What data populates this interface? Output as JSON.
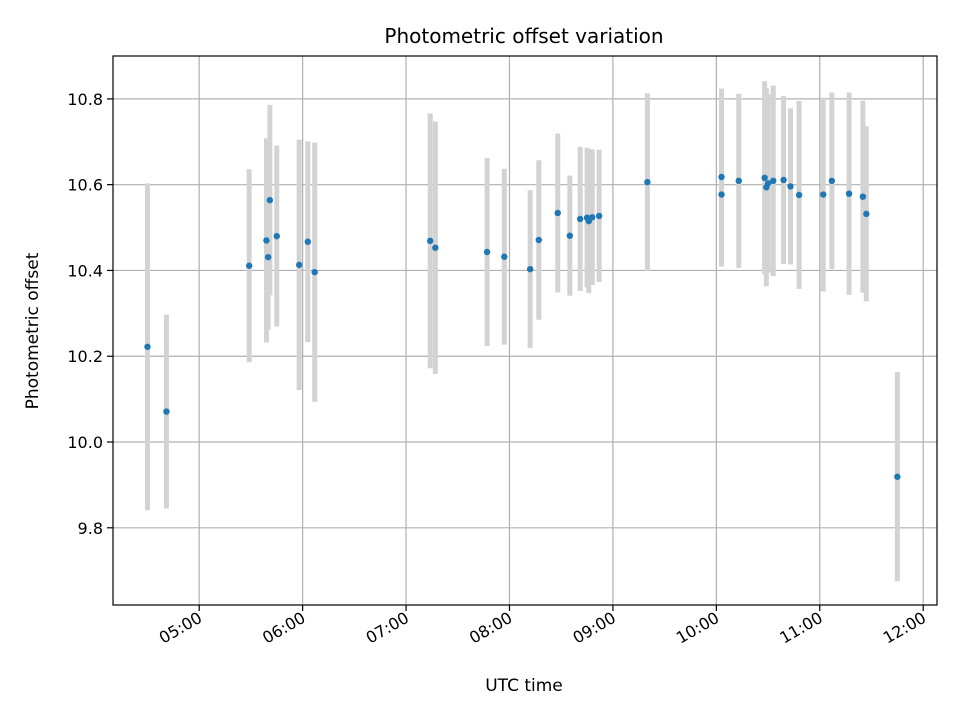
{
  "chart_data": {
    "type": "scatter",
    "title": "Photometric offset variation",
    "xlabel": "UTC time",
    "ylabel": "Photometric offset",
    "x_unit": "UTC time (HH:MM)",
    "xlim": [
      "04:10",
      "12:08"
    ],
    "ylim": [
      9.62,
      10.9
    ],
    "x_ticks": [
      "05:00",
      "06:00",
      "07:00",
      "08:00",
      "09:00",
      "10:00",
      "11:00",
      "12:00"
    ],
    "y_ticks": [
      "9.8",
      "10.0",
      "10.2",
      "10.4",
      "10.6",
      "10.8"
    ],
    "grid": true,
    "legend": "none",
    "colors": {
      "point": "#1f77b4",
      "errorbar": "#d3d3d3",
      "grid": "#b0b0b0"
    },
    "points": [
      {
        "x": "04:30",
        "y": 10.222,
        "err": 0.381
      },
      {
        "x": "04:41",
        "y": 10.071,
        "err": 0.226
      },
      {
        "x": "05:29",
        "y": 10.411,
        "err": 0.225
      },
      {
        "x": "05:39",
        "y": 10.47,
        "err": 0.238
      },
      {
        "x": "05:40",
        "y": 10.431,
        "err": 0.169
      },
      {
        "x": "05:41",
        "y": 10.564,
        "err": 0.222
      },
      {
        "x": "05:45",
        "y": 10.48,
        "err": 0.211
      },
      {
        "x": "05:58",
        "y": 10.413,
        "err": 0.292
      },
      {
        "x": "06:03",
        "y": 10.467,
        "err": 0.234
      },
      {
        "x": "06:07",
        "y": 10.396,
        "err": 0.302
      },
      {
        "x": "07:14",
        "y": 10.469,
        "err": 0.297
      },
      {
        "x": "07:17",
        "y": 10.453,
        "err": 0.294
      },
      {
        "x": "07:47",
        "y": 10.443,
        "err": 0.219
      },
      {
        "x": "07:57",
        "y": 10.432,
        "err": 0.205
      },
      {
        "x": "08:12",
        "y": 10.403,
        "err": 0.184
      },
      {
        "x": "08:17",
        "y": 10.471,
        "err": 0.186
      },
      {
        "x": "08:28",
        "y": 10.534,
        "err": 0.185
      },
      {
        "x": "08:35",
        "y": 10.481,
        "err": 0.14
      },
      {
        "x": "08:41",
        "y": 10.52,
        "err": 0.168
      },
      {
        "x": "08:45",
        "y": 10.523,
        "err": 0.163
      },
      {
        "x": "08:46",
        "y": 10.515,
        "err": 0.168
      },
      {
        "x": "08:48",
        "y": 10.524,
        "err": 0.158
      },
      {
        "x": "08:52",
        "y": 10.527,
        "err": 0.154
      },
      {
        "x": "09:20",
        "y": 10.606,
        "err": 0.207
      },
      {
        "x": "10:03",
        "y": 10.577,
        "err": 0.168
      },
      {
        "x": "10:03",
        "y": 10.618,
        "err": 0.206
      },
      {
        "x": "10:13",
        "y": 10.609,
        "err": 0.203
      },
      {
        "x": "10:28",
        "y": 10.616,
        "err": 0.225
      },
      {
        "x": "10:29",
        "y": 10.594,
        "err": 0.231
      },
      {
        "x": "10:30",
        "y": 10.603,
        "err": 0.208
      },
      {
        "x": "10:33",
        "y": 10.609,
        "err": 0.222
      },
      {
        "x": "10:39",
        "y": 10.611,
        "err": 0.196
      },
      {
        "x": "10:43",
        "y": 10.596,
        "err": 0.182
      },
      {
        "x": "10:48",
        "y": 10.576,
        "err": 0.219
      },
      {
        "x": "11:02",
        "y": 10.577,
        "err": 0.226
      },
      {
        "x": "11:07",
        "y": 10.609,
        "err": 0.206
      },
      {
        "x": "11:17",
        "y": 10.579,
        "err": 0.236
      },
      {
        "x": "11:25",
        "y": 10.572,
        "err": 0.224
      },
      {
        "x": "11:27",
        "y": 10.532,
        "err": 0.204
      },
      {
        "x": "11:45",
        "y": 9.919,
        "err": 0.244
      }
    ]
  }
}
